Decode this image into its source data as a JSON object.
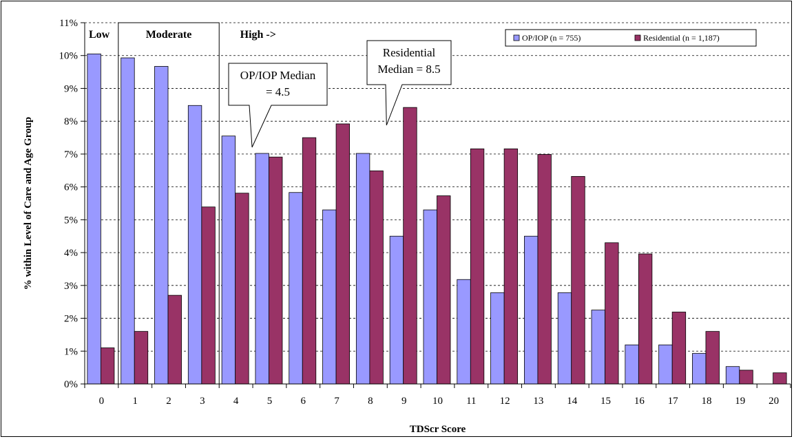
{
  "chart_data": {
    "type": "bar",
    "title": "",
    "xlabel": "TDScr Score",
    "ylabel": "% within Level of Care and Age Group",
    "ylim": [
      0,
      11
    ],
    "y_ticks": [
      "0%",
      "1%",
      "2%",
      "3%",
      "4%",
      "5%",
      "6%",
      "7%",
      "8%",
      "9%",
      "10%",
      "11%"
    ],
    "grid": "horizontal dashed",
    "legend_position": "top-right",
    "categories": [
      "0",
      "1",
      "2",
      "3",
      "4",
      "5",
      "6",
      "7",
      "8",
      "9",
      "10",
      "11",
      "12",
      "13",
      "14",
      "15",
      "16",
      "17",
      "18",
      "19",
      "20"
    ],
    "series": [
      {
        "name": "OP/IOP (n = 755)",
        "color": "#9999ff",
        "values": [
          10.05,
          9.93,
          9.67,
          8.48,
          7.55,
          7.02,
          5.83,
          5.3,
          7.02,
          4.5,
          5.3,
          3.18,
          2.78,
          4.5,
          2.78,
          2.25,
          1.19,
          1.19,
          0.93,
          0.53,
          0.0
        ]
      },
      {
        "name": "Residential (n = 1,187)",
        "color": "#993366",
        "values": [
          1.1,
          1.6,
          2.7,
          5.39,
          5.81,
          6.91,
          7.5,
          7.92,
          6.49,
          8.42,
          5.73,
          7.16,
          7.16,
          6.99,
          6.32,
          4.3,
          3.96,
          2.19,
          1.6,
          0.42,
          0.34
        ]
      }
    ],
    "bands": [
      {
        "label": "Low",
        "from": 0,
        "to": 0
      },
      {
        "label": "Moderate",
        "from": 1,
        "to": 3
      },
      {
        "label": "High ->",
        "from": 4,
        "to": 20
      }
    ],
    "annotations": [
      {
        "lines": [
          "OP/IOP Median",
          "= 4.5"
        ],
        "x": 4.5
      },
      {
        "lines": [
          "Residential",
          "Median = 8.5"
        ],
        "x": 8.5
      }
    ]
  }
}
